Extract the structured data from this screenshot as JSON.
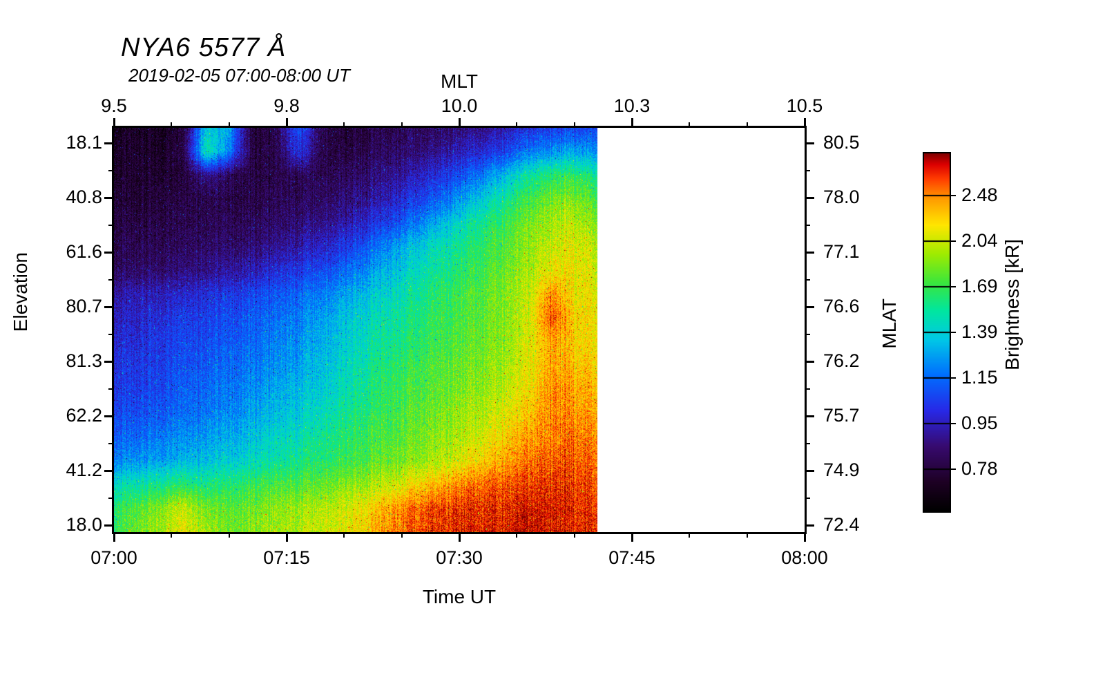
{
  "title": "NYA6 5577 Å",
  "subtitle": "2019-02-05 07:00-08:00 UT",
  "axes": {
    "top": {
      "label": "MLT",
      "ticks": [
        "9.5",
        "9.8",
        "10.0",
        "10.3",
        "10.5"
      ]
    },
    "bottom": {
      "label": "Time UT",
      "ticks": [
        "07:00",
        "07:15",
        "07:30",
        "07:45",
        "08:00"
      ]
    },
    "left": {
      "label": "Elevation",
      "ticks": [
        "18.1",
        "40.8",
        "61.6",
        "80.7",
        "81.3",
        "62.2",
        "41.2",
        "18.0"
      ]
    },
    "right": {
      "label": "MLAT",
      "ticks": [
        "80.5",
        "78.0",
        "77.1",
        "76.6",
        "76.2",
        "75.7",
        "74.9",
        "72.4"
      ]
    }
  },
  "colorbar": {
    "label": "Brightness [kR]",
    "ticks": [
      "2.48",
      "2.04",
      "1.69",
      "1.39",
      "1.15",
      "0.95",
      "0.78"
    ]
  },
  "chart_data": {
    "type": "heatmap",
    "title": "NYA6 5577 Å",
    "subtitle": "2019-02-05 07:00-08:00 UT",
    "xlabel": "Time UT",
    "x_range": [
      "07:00",
      "08:00"
    ],
    "data_extent_end": "07:42",
    "top_axis_label": "MLT",
    "top_ticks_mlt": [
      9.5,
      9.8,
      10.0,
      10.3,
      10.5
    ],
    "ylabel": "Elevation",
    "left_ticks_elevation": [
      18.1,
      40.8,
      61.6,
      80.7,
      81.3,
      62.2,
      41.2,
      18.0
    ],
    "right_axis_label": "MLAT",
    "right_ticks_mlat": [
      80.5,
      78.0,
      77.1,
      76.6,
      76.2,
      75.7,
      74.9,
      72.4
    ],
    "colorbar_label": "Brightness [kR]",
    "colorbar_ticks_kR": [
      2.48,
      2.04,
      1.69,
      1.39,
      1.15,
      0.95,
      0.78
    ],
    "notes": "Meridian-scan keogram. Dark/black low brightness upper-left (early times, high elevation rows), brightening through blue, cyan and green toward later times; yellow band near end of data; intense red (>2.5 kR) along bottom scan edge after ~07:22 and in a vertical blob near 07:38; bright cyan patch near top around 07:08-07:10; data ends ~07:42, white afterwards.",
    "grid_description": "Normalized brightness 0-1. Rows: top (elevation 18.1) to bottom (elevation 18.0), 18 rows. Cols: 07:00 to 07:42 UT in 2-min steps, 22 cols.",
    "grid": [
      [
        0.06,
        0.08,
        0.07,
        0.1,
        0.5,
        0.45,
        0.1,
        0.12,
        0.35,
        0.15,
        0.1,
        0.12,
        0.14,
        0.15,
        0.16,
        0.18,
        0.2,
        0.24,
        0.28,
        0.3,
        0.32,
        0.3
      ],
      [
        0.08,
        0.09,
        0.08,
        0.12,
        0.55,
        0.4,
        0.12,
        0.12,
        0.3,
        0.14,
        0.12,
        0.14,
        0.16,
        0.18,
        0.2,
        0.24,
        0.28,
        0.32,
        0.38,
        0.42,
        0.45,
        0.4
      ],
      [
        0.08,
        0.1,
        0.09,
        0.1,
        0.2,
        0.15,
        0.12,
        0.12,
        0.15,
        0.14,
        0.15,
        0.17,
        0.2,
        0.24,
        0.28,
        0.33,
        0.4,
        0.48,
        0.55,
        0.6,
        0.62,
        0.55
      ],
      [
        0.1,
        0.1,
        0.11,
        0.12,
        0.13,
        0.13,
        0.13,
        0.14,
        0.15,
        0.16,
        0.18,
        0.21,
        0.25,
        0.3,
        0.35,
        0.42,
        0.5,
        0.57,
        0.63,
        0.68,
        0.7,
        0.62
      ],
      [
        0.12,
        0.12,
        0.13,
        0.13,
        0.14,
        0.15,
        0.15,
        0.16,
        0.18,
        0.2,
        0.23,
        0.27,
        0.32,
        0.38,
        0.45,
        0.52,
        0.58,
        0.63,
        0.68,
        0.72,
        0.75,
        0.68
      ],
      [
        0.13,
        0.14,
        0.14,
        0.15,
        0.16,
        0.17,
        0.18,
        0.2,
        0.23,
        0.26,
        0.3,
        0.35,
        0.42,
        0.48,
        0.53,
        0.57,
        0.62,
        0.66,
        0.7,
        0.75,
        0.78,
        0.72
      ],
      [
        0.15,
        0.16,
        0.17,
        0.18,
        0.2,
        0.22,
        0.24,
        0.27,
        0.3,
        0.33,
        0.37,
        0.42,
        0.47,
        0.52,
        0.56,
        0.6,
        0.64,
        0.68,
        0.72,
        0.78,
        0.8,
        0.74
      ],
      [
        0.22,
        0.24,
        0.25,
        0.26,
        0.28,
        0.3,
        0.32,
        0.34,
        0.37,
        0.4,
        0.44,
        0.48,
        0.52,
        0.56,
        0.6,
        0.63,
        0.66,
        0.7,
        0.74,
        0.88,
        0.8,
        0.76
      ],
      [
        0.25,
        0.26,
        0.28,
        0.3,
        0.31,
        0.33,
        0.35,
        0.37,
        0.4,
        0.44,
        0.48,
        0.52,
        0.55,
        0.58,
        0.62,
        0.64,
        0.67,
        0.7,
        0.75,
        0.92,
        0.82,
        0.78
      ],
      [
        0.27,
        0.28,
        0.3,
        0.32,
        0.33,
        0.35,
        0.37,
        0.39,
        0.42,
        0.46,
        0.5,
        0.54,
        0.57,
        0.6,
        0.63,
        0.65,
        0.68,
        0.71,
        0.76,
        0.86,
        0.82,
        0.78
      ],
      [
        0.28,
        0.3,
        0.31,
        0.33,
        0.35,
        0.37,
        0.39,
        0.41,
        0.44,
        0.48,
        0.52,
        0.56,
        0.6,
        0.63,
        0.65,
        0.67,
        0.7,
        0.73,
        0.77,
        0.86,
        0.84,
        0.8
      ],
      [
        0.3,
        0.31,
        0.33,
        0.35,
        0.37,
        0.39,
        0.41,
        0.44,
        0.47,
        0.5,
        0.54,
        0.58,
        0.62,
        0.64,
        0.66,
        0.69,
        0.71,
        0.75,
        0.79,
        0.88,
        0.86,
        0.82
      ],
      [
        0.32,
        0.33,
        0.35,
        0.37,
        0.39,
        0.41,
        0.44,
        0.47,
        0.5,
        0.53,
        0.57,
        0.6,
        0.63,
        0.66,
        0.68,
        0.71,
        0.74,
        0.78,
        0.82,
        0.88,
        0.88,
        0.84
      ],
      [
        0.35,
        0.37,
        0.39,
        0.41,
        0.43,
        0.45,
        0.48,
        0.51,
        0.54,
        0.57,
        0.6,
        0.63,
        0.65,
        0.68,
        0.7,
        0.73,
        0.77,
        0.82,
        0.86,
        0.88,
        0.9,
        0.86
      ],
      [
        0.4,
        0.42,
        0.44,
        0.46,
        0.48,
        0.5,
        0.52,
        0.55,
        0.58,
        0.6,
        0.63,
        0.65,
        0.68,
        0.7,
        0.73,
        0.77,
        0.82,
        0.86,
        0.89,
        0.91,
        0.92,
        0.88
      ],
      [
        0.52,
        0.55,
        0.57,
        0.6,
        0.58,
        0.6,
        0.62,
        0.64,
        0.65,
        0.67,
        0.7,
        0.72,
        0.75,
        0.8,
        0.84,
        0.88,
        0.91,
        0.92,
        0.93,
        0.94,
        0.94,
        0.9
      ],
      [
        0.6,
        0.65,
        0.7,
        0.75,
        0.68,
        0.66,
        0.68,
        0.7,
        0.72,
        0.74,
        0.76,
        0.8,
        0.86,
        0.9,
        0.93,
        0.94,
        0.95,
        0.95,
        0.96,
        0.96,
        0.95,
        0.92
      ],
      [
        0.62,
        0.68,
        0.72,
        0.78,
        0.72,
        0.68,
        0.7,
        0.72,
        0.74,
        0.76,
        0.78,
        0.82,
        0.88,
        0.92,
        0.94,
        0.95,
        0.96,
        0.96,
        0.97,
        0.96,
        0.95,
        0.93
      ]
    ],
    "colormap_stops": [
      [
        0.0,
        "#000000"
      ],
      [
        0.08,
        "#1d0023"
      ],
      [
        0.18,
        "#370a6e"
      ],
      [
        0.28,
        "#2828e6"
      ],
      [
        0.38,
        "#006eff"
      ],
      [
        0.48,
        "#00c8e6"
      ],
      [
        0.56,
        "#00e6a0"
      ],
      [
        0.64,
        "#3ce63c"
      ],
      [
        0.72,
        "#a0eb00"
      ],
      [
        0.8,
        "#ffe600"
      ],
      [
        0.87,
        "#ffa000"
      ],
      [
        0.93,
        "#ff3c00"
      ],
      [
        0.97,
        "#dc0000"
      ],
      [
        1.0,
        "#820000"
      ]
    ]
  },
  "colors": {
    "background": "#ffffff",
    "frame": "#000000",
    "text": "#000000"
  }
}
